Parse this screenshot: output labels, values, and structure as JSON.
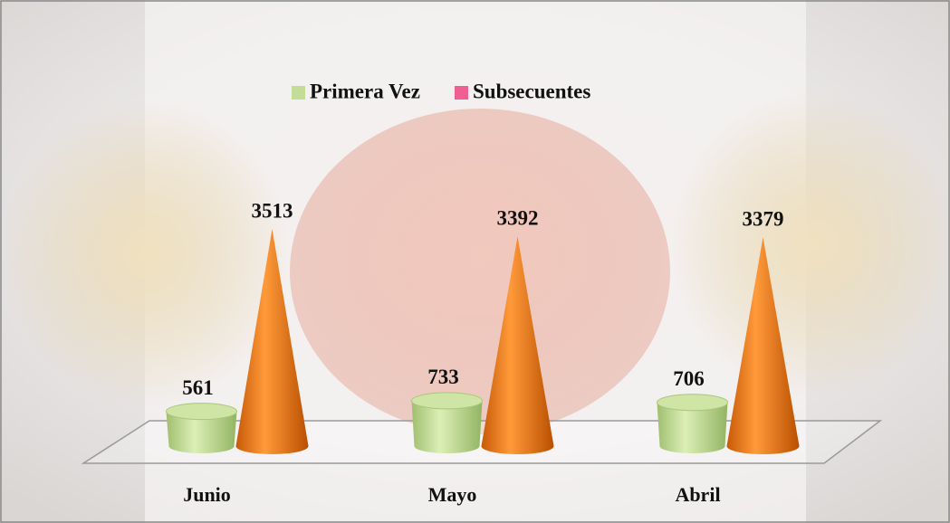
{
  "chart_data": {
    "type": "cone",
    "categories": [
      "Junio",
      "Mayo",
      "Abril"
    ],
    "series": [
      {
        "name": "Primera Vez",
        "color": "#c3dd97",
        "values": [
          561,
          733,
          706
        ]
      },
      {
        "name": "Subsecuentes",
        "color": "#f07c14",
        "legend_color": "#ef5f91",
        "values": [
          3513,
          3392,
          3379
        ]
      }
    ],
    "legend": "top"
  }
}
